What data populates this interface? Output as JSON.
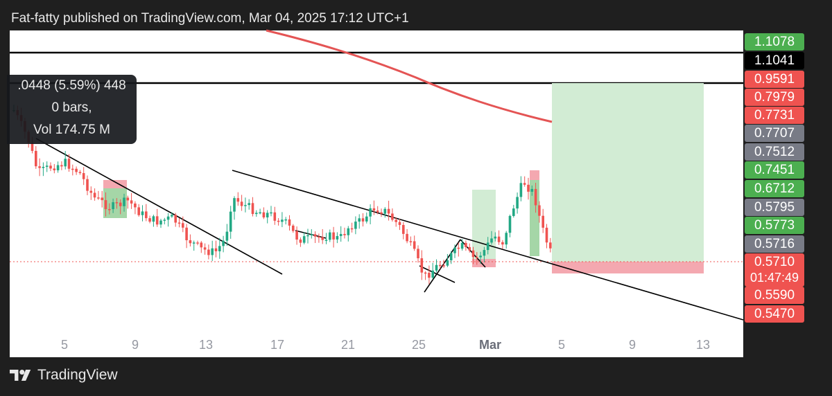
{
  "header": {
    "title": "Fat-fatty published on TradingView.com, Mar 04, 2025 17:12 UTC+1"
  },
  "footer": {
    "brand": "TradingView",
    "logo_icon": "tradingview-logo-icon"
  },
  "tooltip": {
    "line1": ".0448 (5.59%) 448",
    "line2": "0 bars,",
    "line3": "Vol 174.75 M"
  },
  "colors": {
    "up": "#22a884",
    "down": "#ef5350",
    "profit_zone": "#d2ecd4",
    "loss_zone": "#f4a8b0",
    "ma": "#e45454"
  },
  "chart_data": {
    "type": "candlestick",
    "x_ticks": [
      "5",
      "9",
      "13",
      "17",
      "21",
      "25",
      "Mar",
      "5",
      "9",
      "13"
    ],
    "y_range": [
      0.547,
      1.1078
    ],
    "price_labels": [
      {
        "text": "1.1078",
        "color": "#4caf50"
      },
      {
        "text": "1.1041",
        "color": "#000000"
      },
      {
        "text": "0.9591",
        "color": "#ef5350"
      },
      {
        "text": "0.7979",
        "color": "#ef5350"
      },
      {
        "text": "0.7731",
        "color": "#ef5350"
      },
      {
        "text": "0.7707",
        "color": "#787b86"
      },
      {
        "text": "0.7512",
        "color": "#787b86"
      },
      {
        "text": "0.7451",
        "color": "#4caf50"
      },
      {
        "text": "0.6712",
        "color": "#4caf50"
      },
      {
        "text": "0.5795",
        "color": "#787b86"
      },
      {
        "text": "0.5773",
        "color": "#4caf50"
      },
      {
        "text": "0.5716",
        "color": "#787b86"
      },
      {
        "text": "0.5710",
        "sub": "01:47:49",
        "color": "#ef5350"
      },
      {
        "text": "0.5590",
        "color": "#ef5350"
      },
      {
        "text": "0.5470",
        "color": "#ef5350"
      }
    ],
    "current_price": "0.5710",
    "countdown": "01:47:49",
    "moving_average": "red, sloping down from top-left",
    "trendlines": 4,
    "position": {
      "type": "long",
      "entry": "0.5710",
      "stop": "0.5590"
    }
  }
}
